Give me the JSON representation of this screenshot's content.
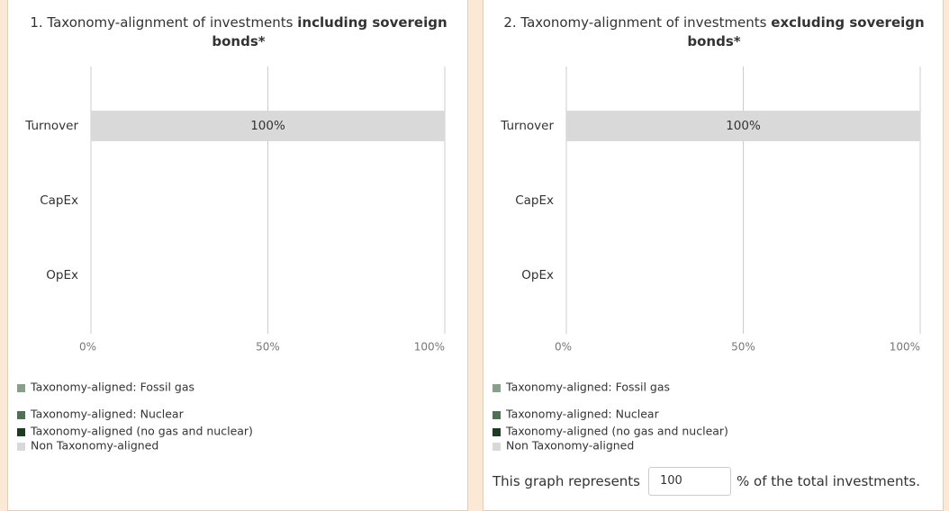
{
  "chart_data": [
    {
      "type": "bar",
      "orientation": "horizontal",
      "stacked": true,
      "title": "1. Taxonomy-alignment of investments",
      "title_emphasis": "including sovereign bonds*",
      "categories": [
        "Turnover",
        "CapEx",
        "OpEx"
      ],
      "series": [
        {
          "name": "Taxonomy-aligned: Fossil gas",
          "color": "#879f8b",
          "values": [
            0,
            0,
            0
          ]
        },
        {
          "name": "Taxonomy-aligned: Nuclear",
          "color": "#4b7352",
          "values": [
            0,
            0,
            0
          ]
        },
        {
          "name": "Taxonomy-aligned (no gas and nuclear)",
          "color": "#1d3a22",
          "values": [
            0,
            0,
            0
          ]
        },
        {
          "name": "Non Taxonomy-aligned",
          "color": "#d9d9d9",
          "values": [
            100,
            0,
            0
          ],
          "value_labels": [
            "100%",
            null,
            null
          ]
        }
      ],
      "xlim": [
        0,
        100
      ],
      "xticks": [
        {
          "value": 0,
          "label": "0%"
        },
        {
          "value": 50,
          "label": "50%"
        },
        {
          "value": 100,
          "label": "100%"
        }
      ],
      "grid": true
    },
    {
      "type": "bar",
      "orientation": "horizontal",
      "stacked": true,
      "title": "2. Taxonomy-alignment of investments",
      "title_emphasis": "excluding sovereign bonds*",
      "categories": [
        "Turnover",
        "CapEx",
        "OpEx"
      ],
      "series": [
        {
          "name": "Taxonomy-aligned: Fossil gas",
          "color": "#879f8b",
          "values": [
            0,
            0,
            0
          ]
        },
        {
          "name": "Taxonomy-aligned: Nuclear",
          "color": "#4b7352",
          "values": [
            0,
            0,
            0
          ]
        },
        {
          "name": "Taxonomy-aligned (no gas and nuclear)",
          "color": "#1d3a22",
          "values": [
            0,
            0,
            0
          ]
        },
        {
          "name": "Non Taxonomy-aligned",
          "color": "#d9d9d9",
          "values": [
            100,
            0,
            0
          ],
          "value_labels": [
            "100%",
            null,
            null
          ]
        }
      ],
      "xlim": [
        0,
        100
      ],
      "xticks": [
        {
          "value": 0,
          "label": "0%"
        },
        {
          "value": 50,
          "label": "50%"
        },
        {
          "value": 100,
          "label": "100%"
        }
      ],
      "grid": true
    }
  ],
  "footer": {
    "before": "This graph represents",
    "input_value": "100",
    "after": "% of the total investments."
  }
}
